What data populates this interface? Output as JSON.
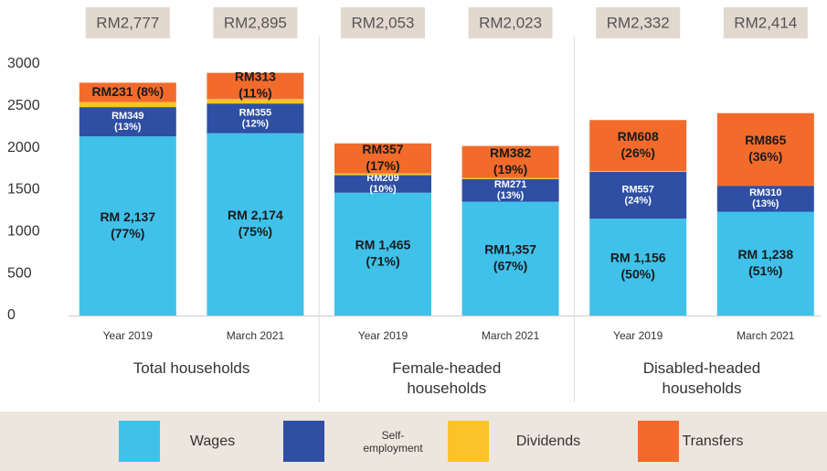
{
  "chart_data": {
    "type": "bar",
    "stacked": true,
    "categories": [
      "Year 2019",
      "March 2021",
      "Year 2019",
      "March 2021",
      "Year 2019",
      "March 2021"
    ],
    "groups": [
      "Total households",
      "Female-headed households",
      "Disabled-headed households"
    ],
    "series": [
      {
        "name": "Wages",
        "color": "#3fc1ea",
        "values": [
          2137,
          2174,
          1465,
          1357,
          1156,
          1238
        ],
        "value_labels": [
          "RM 2,137",
          "RM 2,174",
          "RM 1,465",
          "RM1,357",
          "RM 1,156",
          "RM 1,238"
        ],
        "share_labels": [
          "(77%)",
          "(75%)",
          "(71%)",
          "(67%)",
          "(50%)",
          "(51%)"
        ]
      },
      {
        "name": "Self-employment",
        "color": "#2e4fa3",
        "values": [
          349,
          355,
          209,
          271,
          557,
          310
        ],
        "value_labels": [
          "RM349",
          "RM355",
          "RM209",
          "RM271",
          "RM557",
          "RM310"
        ],
        "share_labels": [
          "(13%)",
          "(12%)",
          "(10%)",
          "(13%)",
          "(24%)",
          "(13%)"
        ]
      },
      {
        "name": "Dividends",
        "color": "#fcc22a",
        "values": [
          60,
          53,
          22,
          13,
          11,
          1
        ]
      },
      {
        "name": "Transfers",
        "color": "#f26b2b",
        "values": [
          231,
          313,
          357,
          382,
          608,
          865
        ],
        "value_labels": [
          "RM231",
          "RM313",
          "RM357",
          "RM382",
          "RM608",
          "RM865"
        ],
        "share_labels": [
          "(8%)",
          "(11%)",
          "(17%)",
          "(19%)",
          "(26%)",
          "(36%)"
        ]
      }
    ],
    "totals": [
      2777,
      2895,
      2053,
      2023,
      2332,
      2414
    ],
    "total_labels": [
      "RM2,777",
      "RM2,895",
      "RM2,053",
      "RM2,023",
      "RM2,332",
      "RM2,414"
    ],
    "ylim": [
      0,
      3000
    ],
    "yticks": [
      0,
      500,
      1000,
      1500,
      2000,
      2500,
      3000
    ],
    "grid": false
  }
}
